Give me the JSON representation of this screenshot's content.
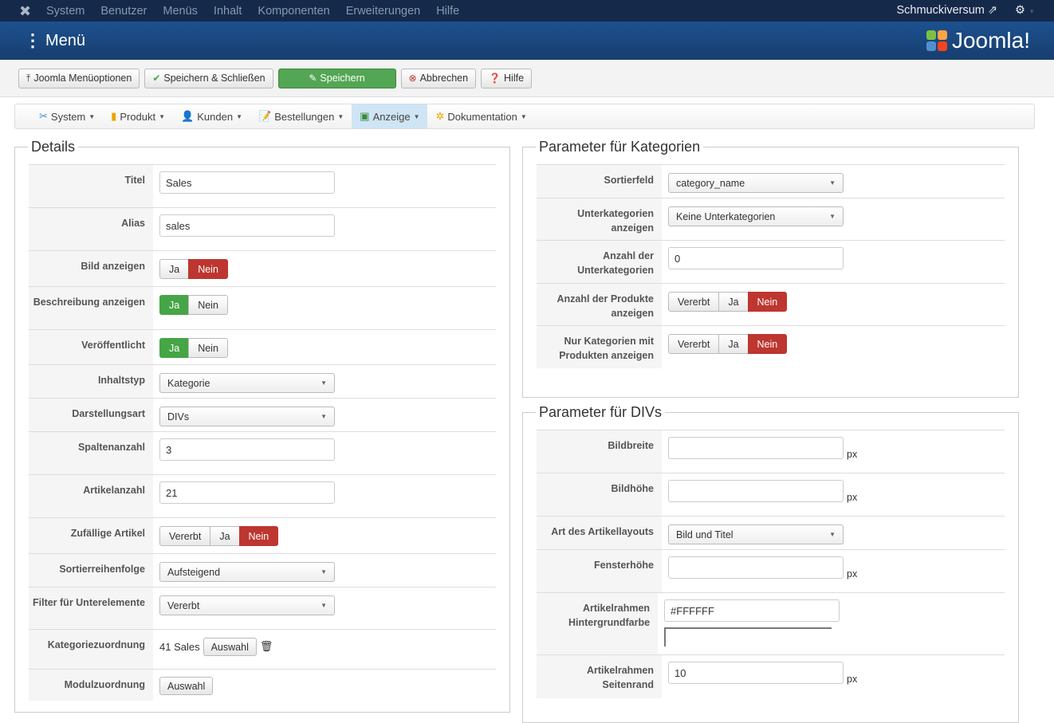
{
  "topnav": {
    "items": [
      "System",
      "Benutzer",
      "Menüs",
      "Inhalt",
      "Komponenten",
      "Erweiterungen",
      "Hilfe"
    ],
    "site": "Schmuckiversum"
  },
  "header": {
    "title": "Menü",
    "logo": "Joomla!"
  },
  "toolbar": {
    "buttons": [
      {
        "label": "Joomla Menüoptionen",
        "icon": "upload-icon"
      },
      {
        "label": "Speichern & Schließen",
        "icon": "check-icon"
      },
      {
        "label": "Speichern",
        "icon": "edit-icon"
      },
      {
        "label": "Abbrechen",
        "icon": "cancel-icon"
      },
      {
        "label": "Hilfe",
        "icon": "help-icon"
      }
    ]
  },
  "menubar": {
    "items": [
      {
        "label": "System",
        "icon": "tools-icon"
      },
      {
        "label": "Produkt",
        "icon": "box-icon"
      },
      {
        "label": "Kunden",
        "icon": "users-icon"
      },
      {
        "label": "Bestellungen",
        "icon": "orders-icon"
      },
      {
        "label": "Anzeige",
        "icon": "display-icon",
        "active": true
      },
      {
        "label": "Dokumentation",
        "icon": "docs-icon"
      }
    ]
  },
  "colors": {
    "yes": "#46a546",
    "no": "#bd362f",
    "topnav": "#15294a",
    "header": "#1d5190"
  },
  "details": {
    "legend": "Details",
    "rows": [
      {
        "label": "Titel",
        "type": "text",
        "value": "Sales"
      },
      {
        "label": "Alias",
        "type": "text",
        "value": "sales"
      },
      {
        "label": "Bild anzeigen",
        "type": "toggle",
        "options": [
          "Ja",
          "Nein"
        ],
        "selected": "Nein"
      },
      {
        "label": "Beschreibung anzeigen",
        "type": "toggle",
        "options": [
          "Ja",
          "Nein"
        ],
        "selected": "Ja"
      },
      {
        "label": "Veröffentlicht",
        "type": "toggle",
        "options": [
          "Ja",
          "Nein"
        ],
        "selected": "Ja"
      },
      {
        "label": "Inhaltstyp",
        "type": "select",
        "value": "Kategorie"
      },
      {
        "label": "Darstellungsart",
        "type": "select",
        "value": "DIVs"
      },
      {
        "label": "Spaltenanzahl",
        "type": "text",
        "value": "3"
      },
      {
        "label": "Artikelanzahl",
        "type": "text",
        "value": "21"
      },
      {
        "label": "Zufällige Artikel",
        "type": "toggle",
        "options": [
          "Vererbt",
          "Ja",
          "Nein"
        ],
        "selected": "Nein"
      },
      {
        "label": "Sortierreihenfolge",
        "type": "select",
        "value": "Aufsteigend"
      },
      {
        "label": "Filter für Unterelemente",
        "type": "select",
        "value": "Vererbt"
      },
      {
        "label": "Kategoriezuordnung",
        "type": "choose",
        "value": "41 Sales",
        "button": "Auswahl"
      },
      {
        "label": "Modulzuordnung",
        "type": "button",
        "button": "Auswahl"
      }
    ]
  },
  "categories": {
    "legend": "Parameter für Kategorien",
    "rows": [
      {
        "label": "Sortierfeld",
        "type": "select",
        "value": "category_name"
      },
      {
        "label": "Unterkategorien anzeigen",
        "type": "select",
        "value": "Keine Unterkategorien"
      },
      {
        "label": "Anzahl der Unterkategorien",
        "type": "text",
        "value": "0"
      },
      {
        "label": "Anzahl der Produkte anzeigen",
        "type": "toggle",
        "options": [
          "Vererbt",
          "Ja",
          "Nein"
        ],
        "selected": "Nein"
      },
      {
        "label": "Nur Kategorien mit Produkten anzeigen",
        "type": "toggle",
        "options": [
          "Vererbt",
          "Ja",
          "Nein"
        ],
        "selected": "Nein"
      }
    ]
  },
  "divs": {
    "legend": "Parameter für DIVs",
    "rows": [
      {
        "label": "Bildbreite",
        "type": "text",
        "value": "",
        "unit": "px"
      },
      {
        "label": "Bildhöhe",
        "type": "text",
        "value": "",
        "unit": "px"
      },
      {
        "label": "Art des Artikellayouts",
        "type": "select",
        "value": "Bild und Titel"
      },
      {
        "label": "Fensterhöhe",
        "type": "text",
        "value": "",
        "unit": "px"
      },
      {
        "label": "Artikelrahmen Hintergrundfarbe",
        "type": "color",
        "value": "#FFFFFF"
      },
      {
        "label": "Artikelrahmen Seitenrand",
        "type": "text",
        "value": "10",
        "unit": "px"
      }
    ]
  }
}
